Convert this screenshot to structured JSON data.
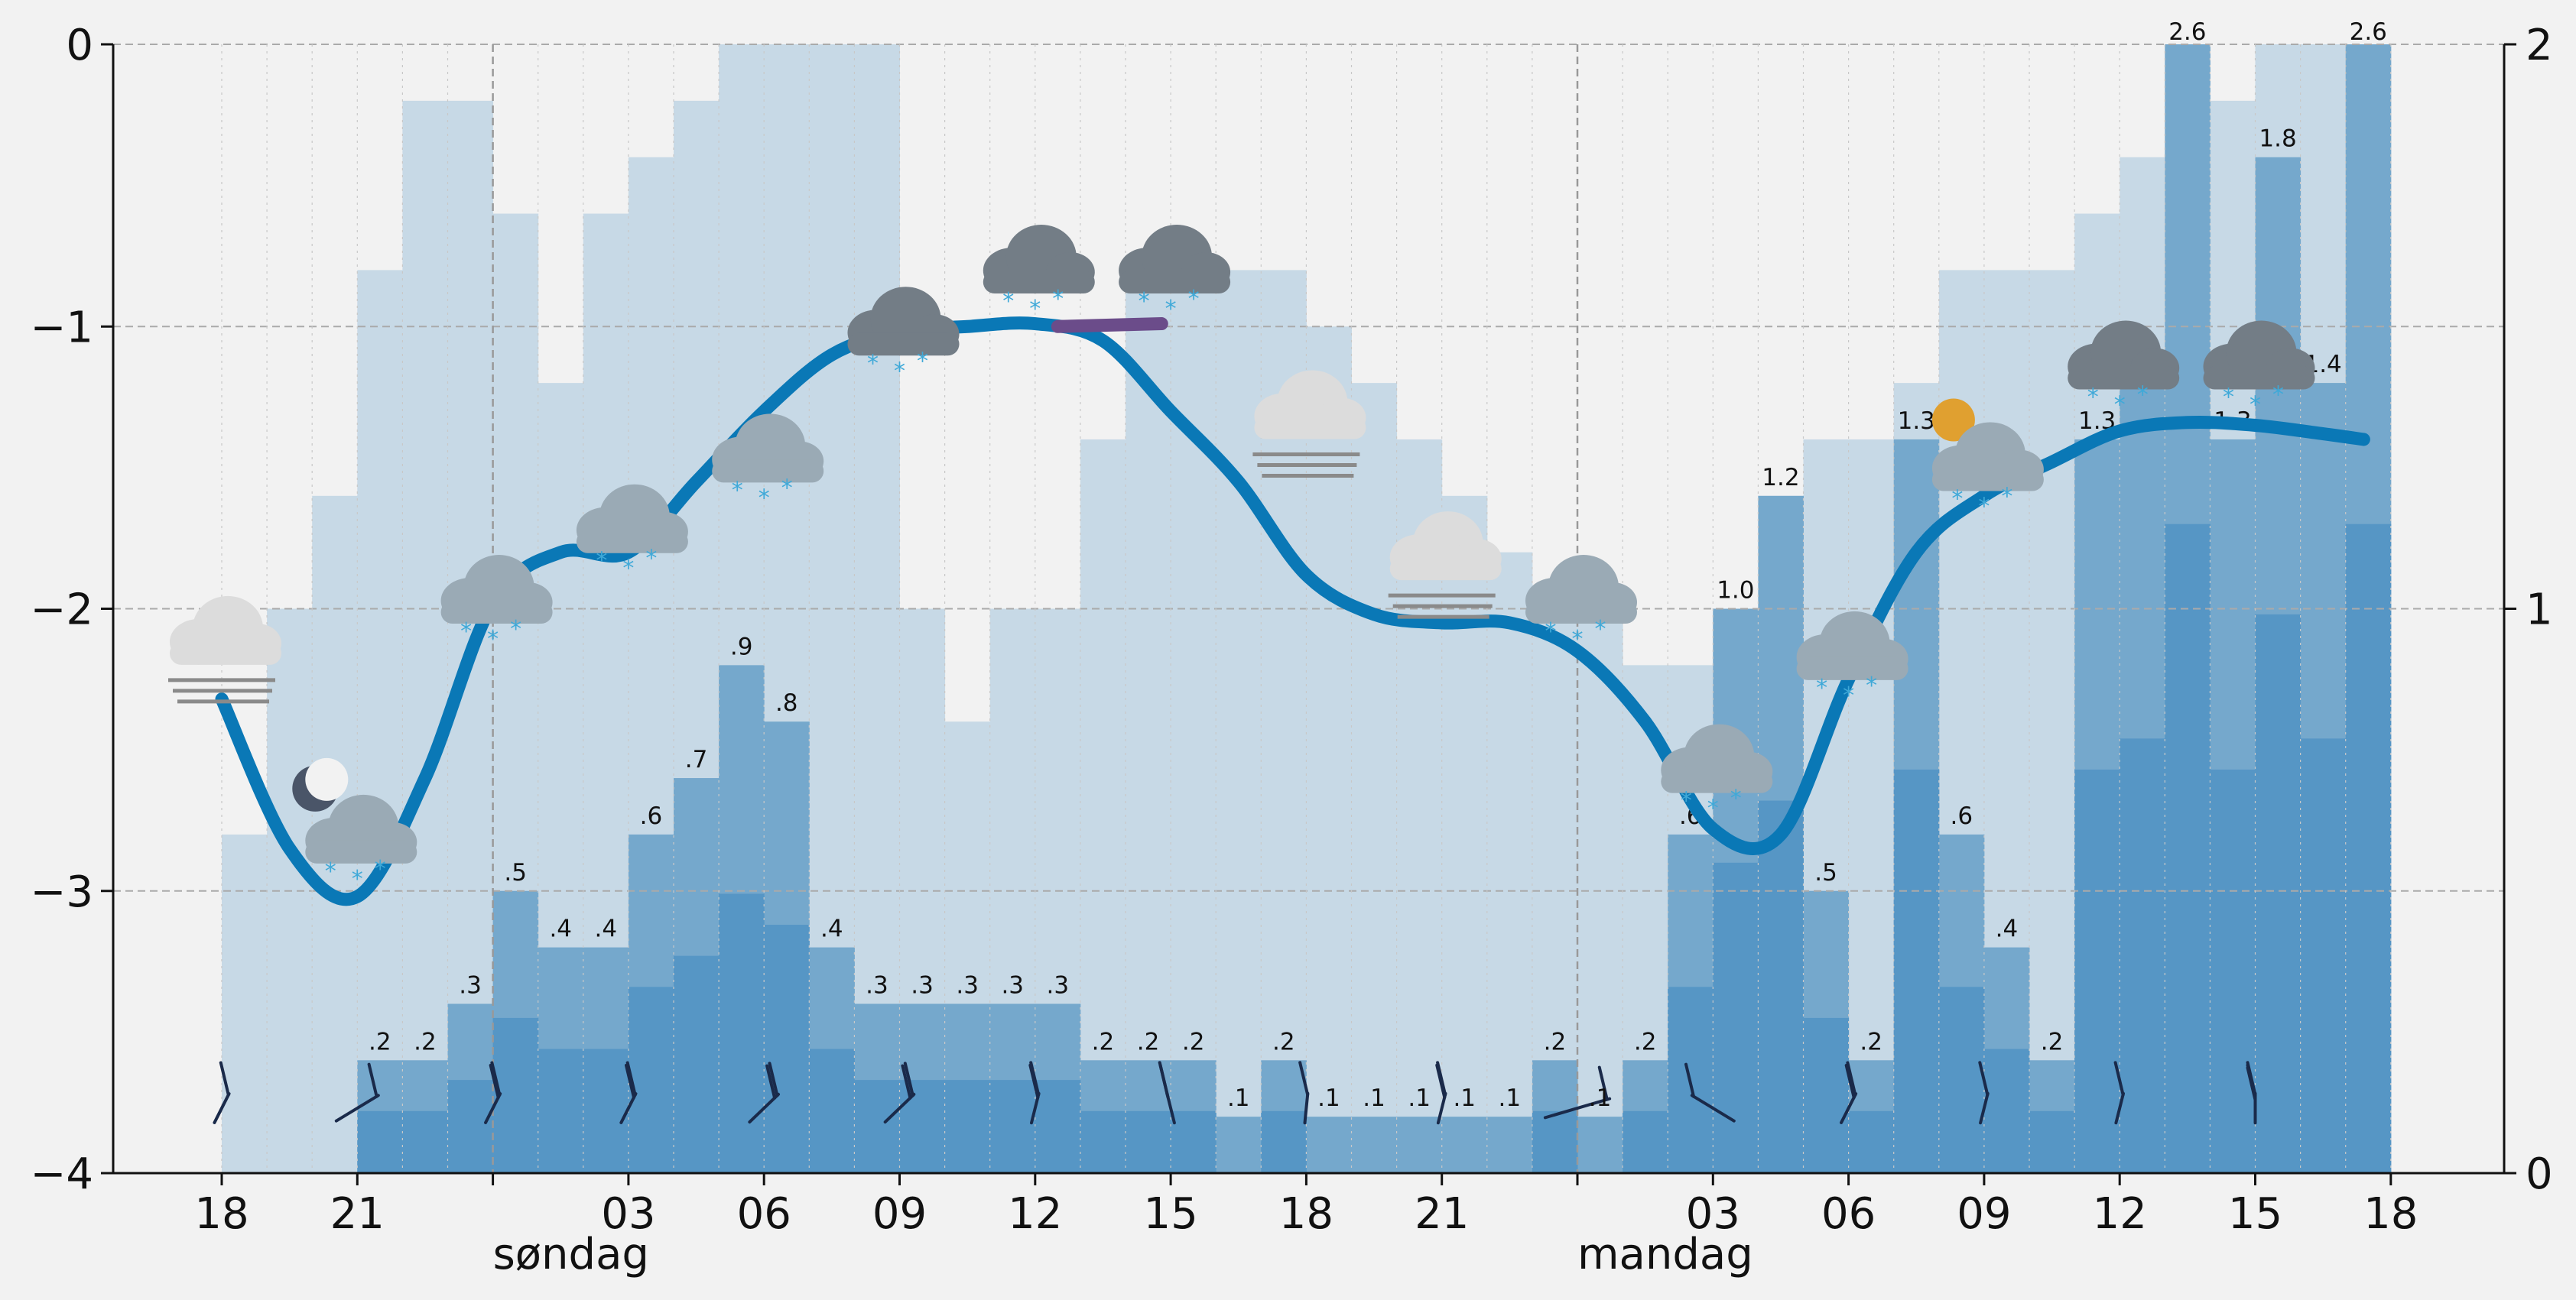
{
  "chart_data": {
    "type": "bar",
    "x_ticks": [
      "18",
      "21",
      "03",
      "06",
      "09",
      "12",
      "15",
      "18",
      "21",
      "03",
      "06",
      "09",
      "12",
      "15",
      "18"
    ],
    "day_labels": [
      {
        "label": "søndag",
        "hour_index": 6
      },
      {
        "label": "mandag",
        "hour_index": 30
      }
    ],
    "y_left": {
      "range": [
        -4,
        0
      ],
      "ticks": [
        "0",
        "−1",
        "−2",
        "−3",
        "−4"
      ],
      "values": [
        0,
        -1,
        -2,
        -3,
        -4
      ]
    },
    "y_right": {
      "range": [
        0,
        2
      ],
      "ticks": [
        "2",
        "1",
        "0"
      ],
      "values": [
        2,
        1,
        0
      ]
    },
    "hours_start": "18",
    "precipitation_max": [
      0.0,
      0.4,
      0.8,
      1.4,
      1.6,
      1.6,
      1.6,
      1.6,
      1.6,
      1.6,
      1.6,
      1.2,
      1.2,
      1.2,
      1.2,
      1.2,
      1.2,
      1.2,
      1.2,
      1.2,
      1.2,
      1.2,
      1.2,
      1.2,
      1.2,
      1.2,
      1.2,
      1.2,
      1.2,
      1.2,
      1.2,
      1.2,
      1.4,
      1.4,
      1.4,
      1.4,
      1.4,
      1.4,
      1.4,
      1.4,
      1.4,
      1.4,
      1.4,
      1.4,
      1.4,
      1.4,
      1.4,
      1.4,
      1.4,
      1.4,
      1.4
    ],
    "precipitation_max_steps": [
      0.6,
      1.0,
      1.2,
      1.6,
      1.9,
      1.9,
      1.7,
      1.4,
      1.7,
      1.8,
      1.9,
      2.0,
      2.0,
      2.0,
      2.0,
      1.0,
      0.8,
      1.0,
      1.0,
      1.3,
      1.6,
      1.6,
      1.6,
      1.6,
      1.5,
      1.4,
      1.3,
      1.2,
      1.1,
      1.0,
      1.0,
      0.9,
      0.9,
      1.0,
      1.2,
      1.3,
      1.3,
      1.4,
      1.6,
      1.6,
      1.6,
      1.7,
      1.8,
      1.8,
      1.9,
      2.0,
      2.0,
      2.0,
      2.0,
      2.0,
      2.0
    ],
    "precipitation_median": [
      0.0,
      0.0,
      0.0,
      0.2,
      0.2,
      0.3,
      0.5,
      0.4,
      0.4,
      0.6,
      0.7,
      0.9,
      0.8,
      0.4,
      0.3,
      0.3,
      0.3,
      0.3,
      0.3,
      0.2,
      0.2,
      0.2,
      0.1,
      0.2,
      0.1,
      0.1,
      0.1,
      0.1,
      0.1,
      0.2,
      0.1,
      0.2,
      0.6,
      1.0,
      1.2,
      0.5,
      0.2,
      1.3,
      0.6,
      0.4,
      0.2,
      1.3,
      1.4,
      2.6,
      1.3,
      1.8,
      1.4,
      2.6
    ],
    "precipitation_min": [
      0.0,
      0.0,
      0.0,
      0.0,
      0.1,
      0.1,
      0.1,
      0.1,
      0.1,
      0.1,
      0.2,
      0.2,
      0.2,
      0.2,
      0.2,
      0.2,
      0.2,
      0.1,
      0.1,
      0.1,
      0.1,
      0.1,
      0.1,
      0.0,
      0.0,
      0.0,
      0.0,
      0.0,
      0.0,
      0.0,
      0.0,
      0.0,
      0.0,
      0.0,
      0.0,
      0.0,
      0.0,
      0.0,
      0.0,
      0.0,
      0.0,
      0.0,
      0.0,
      0.0,
      0.0,
      0.0,
      0.0,
      0.0
    ],
    "precipitation_labels": [
      {
        "hour_index": 3,
        "text": ".2"
      },
      {
        "hour_index": 4,
        "text": ".2"
      },
      {
        "hour_index": 5,
        "text": ".3"
      },
      {
        "hour_index": 6,
        "text": ".5"
      },
      {
        "hour_index": 7,
        "text": ".4"
      },
      {
        "hour_index": 8,
        "text": ".4"
      },
      {
        "hour_index": 9,
        "text": ".6"
      },
      {
        "hour_index": 10,
        "text": ".7"
      },
      {
        "hour_index": 11,
        "text": ".9"
      },
      {
        "hour_index": 12,
        "text": ".8"
      },
      {
        "hour_index": 13,
        "text": ".4"
      },
      {
        "hour_index": 14,
        "text": ".3"
      },
      {
        "hour_index": 15,
        "text": ".3"
      },
      {
        "hour_index": 16,
        "text": ".3"
      },
      {
        "hour_index": 17,
        "text": ".3"
      },
      {
        "hour_index": 18,
        "text": ".3"
      },
      {
        "hour_index": 19,
        "text": ".2"
      },
      {
        "hour_index": 20,
        "text": ".2"
      },
      {
        "hour_index": 21,
        "text": ".2"
      },
      {
        "hour_index": 22,
        "text": ".1"
      },
      {
        "hour_index": 23,
        "text": ".2"
      },
      {
        "hour_index": 24,
        "text": ".1"
      },
      {
        "hour_index": 25,
        "text": ".1"
      },
      {
        "hour_index": 26,
        "text": ".1"
      },
      {
        "hour_index": 27,
        "text": ".1"
      },
      {
        "hour_index": 28,
        "text": ".1"
      },
      {
        "hour_index": 29,
        "text": ".2"
      },
      {
        "hour_index": 30,
        "text": ".1"
      },
      {
        "hour_index": 31,
        "text": ".2"
      },
      {
        "hour_index": 32,
        "text": ".6"
      },
      {
        "hour_index": 33,
        "text": "1.0"
      },
      {
        "hour_index": 34,
        "text": "1.2"
      },
      {
        "hour_index": 35,
        "text": ".5"
      },
      {
        "hour_index": 36,
        "text": ".2"
      },
      {
        "hour_index": 37,
        "text": "1.3"
      },
      {
        "hour_index": 38,
        "text": ".6"
      },
      {
        "hour_index": 39,
        "text": ".4"
      },
      {
        "hour_index": 40,
        "text": ".2"
      },
      {
        "hour_index": 41,
        "text": "1.3"
      },
      {
        "hour_index": 42,
        "text": "1.4"
      },
      {
        "hour_index": 43,
        "text": "2.6"
      },
      {
        "hour_index": 44,
        "text": "1.3"
      },
      {
        "hour_index": 45,
        "text": "1.8"
      },
      {
        "hour_index": 46,
        "text": "1.4"
      },
      {
        "hour_index": 47,
        "text": "2.6"
      }
    ],
    "temperature": [
      {
        "h": 0,
        "t": -2.32
      },
      {
        "h": 1.5,
        "t": -2.85
      },
      {
        "h": 3,
        "t": -3.02
      },
      {
        "h": 4.5,
        "t": -2.6
      },
      {
        "h": 6,
        "t": -1.98
      },
      {
        "h": 7.5,
        "t": -1.8
      },
      {
        "h": 9,
        "t": -1.8
      },
      {
        "h": 10.5,
        "t": -1.55
      },
      {
        "h": 12,
        "t": -1.3
      },
      {
        "h": 13.5,
        "t": -1.1
      },
      {
        "h": 15,
        "t": -1.02
      },
      {
        "h": 16.5,
        "t": -1.0
      },
      {
        "h": 18,
        "t": -0.99
      },
      {
        "h": 19.5,
        "t": -1.05
      },
      {
        "h": 21,
        "t": -1.3
      },
      {
        "h": 22.5,
        "t": -1.55
      },
      {
        "h": 24,
        "t": -1.88
      },
      {
        "h": 25.5,
        "t": -2.02
      },
      {
        "h": 27,
        "t": -2.05
      },
      {
        "h": 28.5,
        "t": -2.05
      },
      {
        "h": 30,
        "t": -2.15
      },
      {
        "h": 31.5,
        "t": -2.4
      },
      {
        "h": 33,
        "t": -2.78
      },
      {
        "h": 34.5,
        "t": -2.8
      },
      {
        "h": 36,
        "t": -2.25
      },
      {
        "h": 37.5,
        "t": -1.8
      },
      {
        "h": 39,
        "t": -1.6
      },
      {
        "h": 40.5,
        "t": -1.48
      },
      {
        "h": 42,
        "t": -1.37
      },
      {
        "h": 43.5,
        "t": -1.34
      },
      {
        "h": 45,
        "t": -1.35
      },
      {
        "h": 46.5,
        "t": -1.38
      },
      {
        "h": 47.4,
        "t": -1.4
      }
    ],
    "highlight_segment": {
      "from_h": 18.5,
      "to_h": 20.8,
      "color": "#6b4c8a"
    },
    "colors": {
      "bar_light": "#c7d9e6",
      "bar_mid": "#75a8cc",
      "bar_dark": "#5696c5",
      "line": "#0a78b6",
      "grid": "#aaaaaa",
      "background": "#f2f2f2",
      "wind": "#1a2a4a",
      "cloud_light": "#dcdcdc",
      "cloud_gray": "#9aaab5",
      "cloud_dark": "#737d86",
      "snow": "#3fa9d8"
    },
    "weather_symbols": [
      {
        "h": 0,
        "t": -2.15,
        "icon": "fog-icon"
      },
      {
        "h": 3,
        "t": -2.8,
        "icon": "night-cloud-snow-icon"
      },
      {
        "h": 6,
        "t": -1.95,
        "icon": "cloud-snow-icon"
      },
      {
        "h": 9,
        "t": -1.7,
        "icon": "cloud-snow-icon"
      },
      {
        "h": 12,
        "t": -1.45,
        "icon": "cloud-snow-icon"
      },
      {
        "h": 15,
        "t": -1.0,
        "icon": "cloud-snow-icon"
      },
      {
        "h": 18,
        "t": -0.78,
        "icon": "cloud-snow-icon"
      },
      {
        "h": 21,
        "t": -0.78,
        "icon": "cloud-snow-icon"
      },
      {
        "h": 24,
        "t": -1.35,
        "icon": "fog-icon"
      },
      {
        "h": 27,
        "t": -1.85,
        "icon": "fog-icon"
      },
      {
        "h": 30,
        "t": -1.95,
        "icon": "cloud-snow-icon"
      },
      {
        "h": 33,
        "t": -2.55,
        "icon": "cloud-snow-icon"
      },
      {
        "h": 36,
        "t": -2.15,
        "icon": "cloud-snow-icon"
      },
      {
        "h": 39,
        "t": -1.48,
        "icon": "partly-sunny-snow-icon"
      },
      {
        "h": 42,
        "t": -1.12,
        "icon": "cloud-snow-icon"
      },
      {
        "h": 45,
        "t": -1.12,
        "icon": "cloud-snow-icon"
      }
    ],
    "wind_barbs": [
      {
        "h": 0,
        "dir": 100,
        "barbs": 1
      },
      {
        "h": 3,
        "dir": 120,
        "barbs": 1
      },
      {
        "h": 6,
        "dir": 100,
        "barbs": 2
      },
      {
        "h": 9,
        "dir": 100,
        "barbs": 2
      },
      {
        "h": 12,
        "dir": 110,
        "barbs": 2
      },
      {
        "h": 15,
        "dir": 110,
        "barbs": 2
      },
      {
        "h": 18,
        "dir": 95,
        "barbs": 2
      },
      {
        "h": 21,
        "dir": 85,
        "barbs": 2
      },
      {
        "h": 24,
        "dir": 92,
        "barbs": 1
      },
      {
        "h": 27,
        "dir": 95,
        "barbs": 2
      },
      {
        "h": 30,
        "dir": 140,
        "barbs": 1
      },
      {
        "h": 33,
        "dir": 60,
        "barbs": 1
      },
      {
        "h": 36,
        "dir": 100,
        "barbs": 2
      },
      {
        "h": 39,
        "dir": 95,
        "barbs": 1
      },
      {
        "h": 42,
        "dir": 95,
        "barbs": 1
      },
      {
        "h": 45,
        "dir": 90,
        "barbs": 3
      }
    ]
  }
}
